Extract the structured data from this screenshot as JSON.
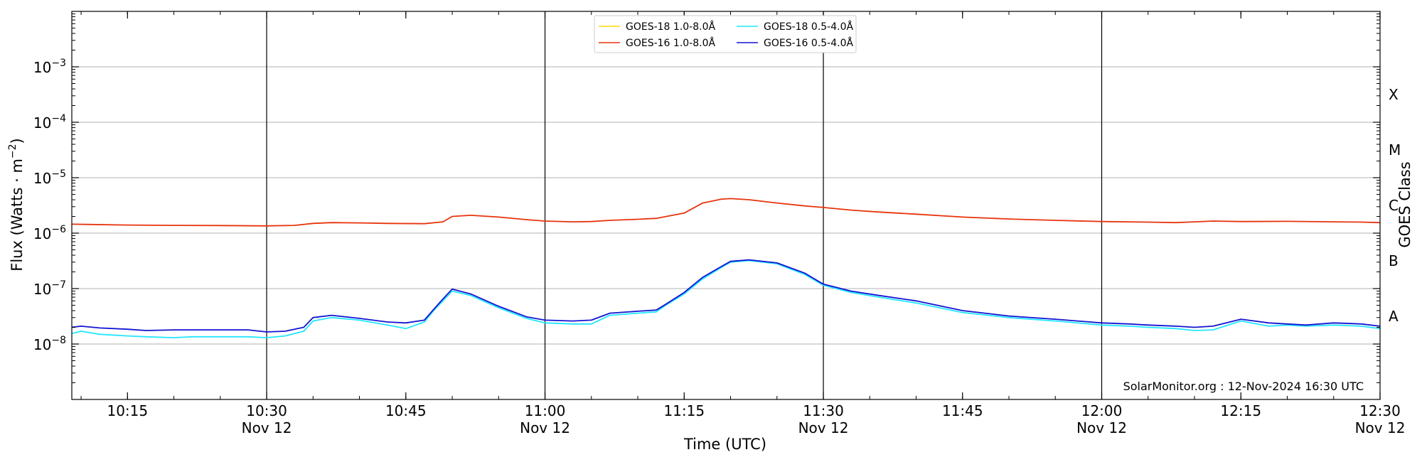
{
  "chart_data": {
    "type": "line",
    "xlabel": "Time (UTC)",
    "ylabel_main": "Flux (Watts · m",
    "ylabel_sup": "−2",
    "ylabel_close": ")",
    "y2label": "GOES Class",
    "yscale": "log",
    "xlim": [
      "10:09",
      "12:30"
    ],
    "ylim": [
      1e-09,
      0.01
    ],
    "x_ticks": [
      {
        "time": "10:15",
        "label": "10:15",
        "sublabel": ""
      },
      {
        "time": "10:30",
        "label": "10:30",
        "sublabel": "Nov 12"
      },
      {
        "time": "10:45",
        "label": "10:45",
        "sublabel": ""
      },
      {
        "time": "11:00",
        "label": "11:00",
        "sublabel": "Nov 12"
      },
      {
        "time": "11:15",
        "label": "11:15",
        "sublabel": ""
      },
      {
        "time": "11:30",
        "label": "11:30",
        "sublabel": "Nov 12"
      },
      {
        "time": "11:45",
        "label": "11:45",
        "sublabel": ""
      },
      {
        "time": "12:00",
        "label": "12:00",
        "sublabel": "Nov 12"
      },
      {
        "time": "12:15",
        "label": "12:15",
        "sublabel": ""
      },
      {
        "time": "12:30",
        "label": "12:30",
        "sublabel": "Nov 12"
      }
    ],
    "y_ticks": [
      {
        "value": 1e-08,
        "base": "10",
        "exp": "−8"
      },
      {
        "value": 1e-07,
        "base": "10",
        "exp": "−7"
      },
      {
        "value": 1e-06,
        "base": "10",
        "exp": "−6"
      },
      {
        "value": 1e-05,
        "base": "10",
        "exp": "−5"
      },
      {
        "value": 0.0001,
        "base": "10",
        "exp": "−4"
      },
      {
        "value": 0.001,
        "base": "10",
        "exp": "−3"
      }
    ],
    "goes_classes": [
      {
        "label": "A",
        "value": 3.16e-08
      },
      {
        "label": "B",
        "value": 3.16e-07
      },
      {
        "label": "C",
        "value": 3.16e-06
      },
      {
        "label": "M",
        "value": 3.16e-05
      },
      {
        "label": "X",
        "value": 0.000316
      }
    ],
    "vlines": [
      "10:30",
      "11:00",
      "11:30",
      "12:00"
    ],
    "grid": "horizontal",
    "legend_position": "top-center",
    "annotation": "SolarMonitor.org : 12-Nov-2024 16:30 UTC",
    "series": [
      {
        "name": "GOES-18 1.0-8.0Å",
        "color": "#ffd700",
        "x": [],
        "values": []
      },
      {
        "name": "GOES-16 1.0-8.0Å",
        "color": "#e8340c",
        "x": [
          "10:09",
          "10:15",
          "10:20",
          "10:25",
          "10:30",
          "10:33",
          "10:35",
          "10:37",
          "10:40",
          "10:43",
          "10:47",
          "10:49",
          "10:50",
          "10:52",
          "10:55",
          "10:58",
          "11:00",
          "11:03",
          "11:05",
          "11:07",
          "11:10",
          "11:12",
          "11:15",
          "11:17",
          "11:19",
          "11:20",
          "11:22",
          "11:25",
          "11:28",
          "11:30",
          "11:33",
          "11:36",
          "11:40",
          "11:45",
          "11:50",
          "11:55",
          "12:00",
          "12:05",
          "12:08",
          "12:10",
          "12:12",
          "12:15",
          "12:20",
          "12:25",
          "12:28",
          "12:30"
        ],
        "values": [
          1.45e-06,
          1.4e-06,
          1.38e-06,
          1.37e-06,
          1.35e-06,
          1.38e-06,
          1.5e-06,
          1.55e-06,
          1.53e-06,
          1.5e-06,
          1.48e-06,
          1.6e-06,
          2e-06,
          2.1e-06,
          1.95e-06,
          1.75e-06,
          1.65e-06,
          1.6e-06,
          1.62e-06,
          1.7e-06,
          1.78e-06,
          1.85e-06,
          2.3e-06,
          3.5e-06,
          4.1e-06,
          4.2e-06,
          4e-06,
          3.5e-06,
          3.1e-06,
          2.9e-06,
          2.6e-06,
          2.4e-06,
          2.2e-06,
          1.95e-06,
          1.8e-06,
          1.7e-06,
          1.62e-06,
          1.58e-06,
          1.55e-06,
          1.6e-06,
          1.65e-06,
          1.62e-06,
          1.63e-06,
          1.6e-06,
          1.58e-06,
          1.55e-06
        ]
      },
      {
        "name": "GOES-18 0.5-4.0Å",
        "color": "#22e6ff",
        "x": [
          "10:09",
          "10:10",
          "10:12",
          "10:15",
          "10:17",
          "10:20",
          "10:22",
          "10:25",
          "10:28",
          "10:30",
          "10:32",
          "10:34",
          "10:35",
          "10:37",
          "10:40",
          "10:43",
          "10:45",
          "10:47",
          "10:48",
          "10:49",
          "10:50",
          "10:52",
          "10:55",
          "10:58",
          "11:00",
          "11:03",
          "11:05",
          "11:07",
          "11:10",
          "11:12",
          "11:13",
          "11:15",
          "11:17",
          "11:19",
          "11:20",
          "11:22",
          "11:25",
          "11:28",
          "11:30",
          "11:33",
          "11:36",
          "11:40",
          "11:45",
          "11:50",
          "11:55",
          "12:00",
          "12:03",
          "12:05",
          "12:08",
          "12:10",
          "12:12",
          "12:15",
          "12:18",
          "12:20",
          "12:22",
          "12:25",
          "12:28",
          "12:30"
        ],
        "values": [
          1.55e-08,
          1.7e-08,
          1.5e-08,
          1.4e-08,
          1.35e-08,
          1.3e-08,
          1.35e-08,
          1.35e-08,
          1.35e-08,
          1.3e-08,
          1.4e-08,
          1.7e-08,
          2.6e-08,
          3e-08,
          2.7e-08,
          2.2e-08,
          1.9e-08,
          2.5e-08,
          4e-08,
          6e-08,
          9e-08,
          7.5e-08,
          4.5e-08,
          2.9e-08,
          2.4e-08,
          2.3e-08,
          2.3e-08,
          3.3e-08,
          3.6e-08,
          3.8e-08,
          5e-08,
          8e-08,
          1.5e-07,
          2.4e-07,
          3e-07,
          3.2e-07,
          2.8e-07,
          1.8e-07,
          1.15e-07,
          8.5e-08,
          7e-08,
          5.5e-08,
          3.7e-08,
          3e-08,
          2.6e-08,
          2.2e-08,
          2.1e-08,
          2e-08,
          1.9e-08,
          1.75e-08,
          1.8e-08,
          2.6e-08,
          2.1e-08,
          2.2e-08,
          2.1e-08,
          2.2e-08,
          2.1e-08,
          1.9e-08
        ]
      },
      {
        "name": "GOES-16 0.5-4.0Å",
        "color": "#1414d2",
        "x": [
          "10:09",
          "10:10",
          "10:12",
          "10:15",
          "10:17",
          "10:20",
          "10:22",
          "10:25",
          "10:28",
          "10:30",
          "10:32",
          "10:34",
          "10:35",
          "10:37",
          "10:40",
          "10:43",
          "10:45",
          "10:47",
          "10:48",
          "10:49",
          "10:50",
          "10:52",
          "10:55",
          "10:58",
          "11:00",
          "11:03",
          "11:05",
          "11:07",
          "11:10",
          "11:12",
          "11:13",
          "11:15",
          "11:17",
          "11:19",
          "11:20",
          "11:22",
          "11:25",
          "11:28",
          "11:30",
          "11:33",
          "11:36",
          "11:40",
          "11:45",
          "11:50",
          "11:55",
          "12:00",
          "12:03",
          "12:05",
          "12:08",
          "12:10",
          "12:12",
          "12:15",
          "12:18",
          "12:20",
          "12:22",
          "12:25",
          "12:28",
          "12:30"
        ],
        "values": [
          2e-08,
          2.1e-08,
          1.95e-08,
          1.85e-08,
          1.75e-08,
          1.8e-08,
          1.8e-08,
          1.8e-08,
          1.8e-08,
          1.65e-08,
          1.7e-08,
          2e-08,
          3e-08,
          3.3e-08,
          2.9e-08,
          2.5e-08,
          2.4e-08,
          2.7e-08,
          4.2e-08,
          6.5e-08,
          9.8e-08,
          8e-08,
          4.8e-08,
          3.1e-08,
          2.7e-08,
          2.6e-08,
          2.7e-08,
          3.6e-08,
          3.9e-08,
          4.1e-08,
          5.2e-08,
          8.5e-08,
          1.6e-07,
          2.5e-07,
          3.1e-07,
          3.3e-07,
          2.9e-07,
          1.9e-07,
          1.2e-07,
          9e-08,
          7.5e-08,
          6e-08,
          4e-08,
          3.2e-08,
          2.8e-08,
          2.4e-08,
          2.3e-08,
          2.2e-08,
          2.1e-08,
          2e-08,
          2.1e-08,
          2.8e-08,
          2.4e-08,
          2.3e-08,
          2.2e-08,
          2.4e-08,
          2.3e-08,
          2.1e-08
        ]
      }
    ]
  }
}
